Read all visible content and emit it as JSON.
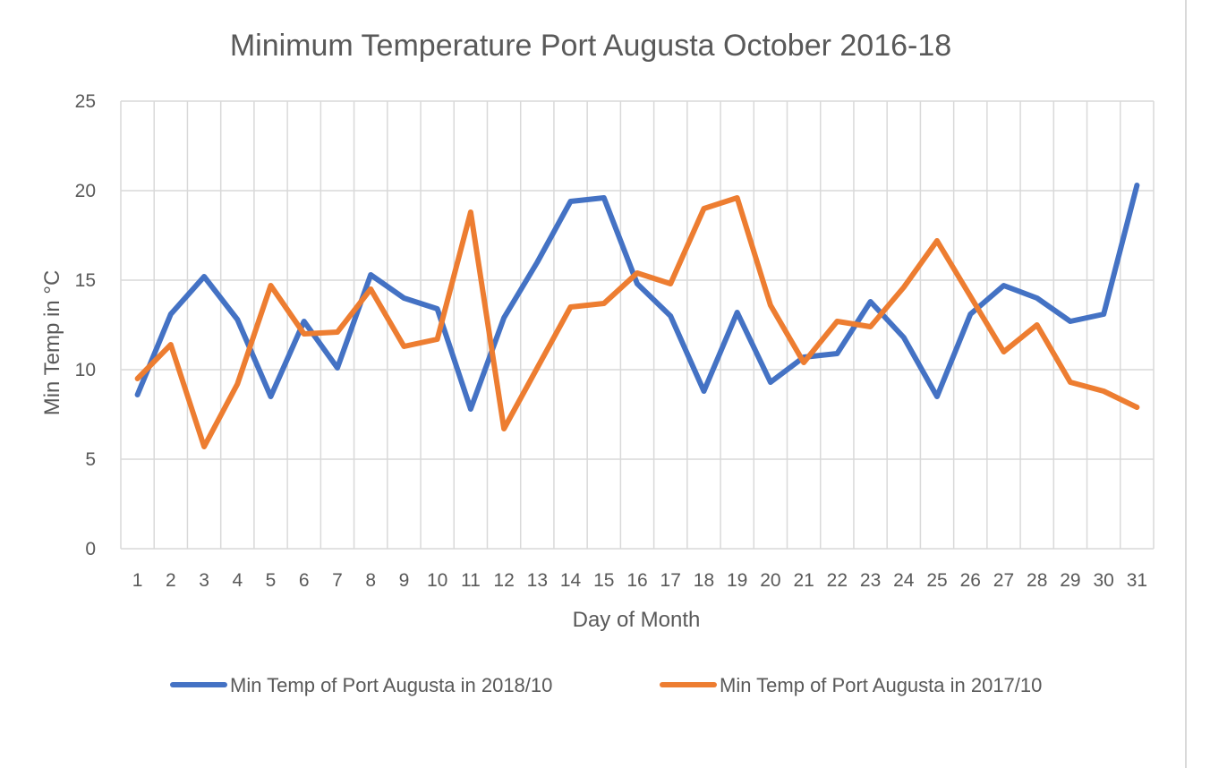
{
  "chart_data": {
    "type": "line",
    "title": "Minimum Temperature Port Augusta October 2016-18",
    "xlabel": "Day of Month",
    "ylabel": "Min Temp in °C",
    "ylim": [
      0,
      25
    ],
    "yticks": [
      0,
      5,
      10,
      15,
      20,
      25
    ],
    "grid": true,
    "legend_position": "bottom",
    "categories": [
      "1",
      "2",
      "3",
      "4",
      "5",
      "6",
      "7",
      "8",
      "9",
      "10",
      "11",
      "12",
      "13",
      "14",
      "15",
      "16",
      "17",
      "18",
      "19",
      "20",
      "21",
      "22",
      "23",
      "24",
      "25",
      "26",
      "27",
      "28",
      "29",
      "30",
      "31"
    ],
    "series": [
      {
        "name": "Min Temp of Port Augusta in 2018/10",
        "color": "#4472c4",
        "values": [
          8.6,
          13.1,
          15.2,
          12.8,
          8.5,
          12.7,
          10.1,
          15.3,
          14.0,
          13.4,
          7.8,
          12.9,
          16.0,
          19.4,
          19.6,
          14.8,
          13.0,
          8.8,
          13.2,
          9.3,
          10.7,
          10.9,
          13.8,
          11.8,
          8.5,
          13.1,
          14.7,
          14.0,
          12.7,
          13.1,
          20.3
        ]
      },
      {
        "name": "Min Temp of Port Augusta in 2017/10",
        "color": "#ed7d31",
        "values": [
          9.5,
          11.4,
          5.7,
          9.2,
          14.7,
          12.0,
          12.1,
          14.5,
          11.3,
          11.7,
          18.8,
          6.7,
          10.1,
          13.5,
          13.7,
          15.4,
          14.8,
          19.0,
          19.6,
          13.6,
          10.4,
          12.7,
          12.4,
          14.6,
          17.2,
          14.1,
          11.0,
          12.5,
          9.3,
          8.8,
          7.9
        ]
      }
    ]
  }
}
